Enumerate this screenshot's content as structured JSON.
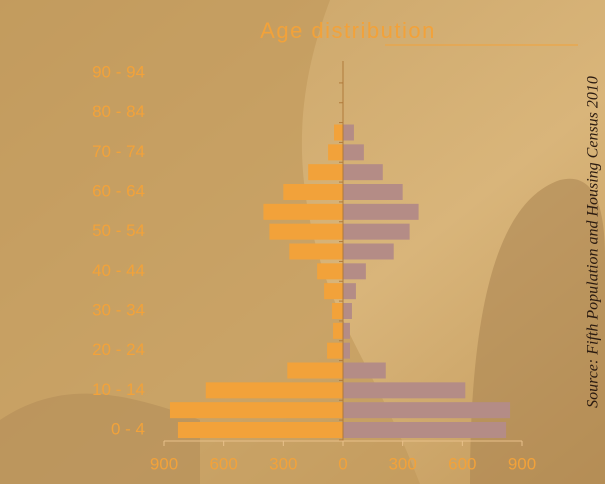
{
  "chart_data": {
    "type": "pyramid",
    "title": "Age distribution",
    "source": "Source: Fifth Population and Housing Census 2010",
    "categories": [
      "0 - 4",
      null,
      "10 - 14",
      null,
      "20 - 24",
      null,
      "30 - 34",
      null,
      "40 - 44",
      null,
      "50 - 54",
      null,
      "60 - 64",
      null,
      "70 - 74",
      null,
      "80 - 84",
      null,
      "90 - 94"
    ],
    "series": [
      {
        "color": "#f2a23a",
        "values": [
          -830,
          -870,
          -690,
          -280,
          -80,
          -50,
          -55,
          -95,
          -130,
          -270,
          -370,
          -400,
          -300,
          -175,
          -75,
          -45,
          0,
          0,
          0
        ]
      },
      {
        "color": "#b48c86",
        "values": [
          820,
          840,
          615,
          215,
          35,
          35,
          45,
          65,
          115,
          255,
          335,
          380,
          300,
          200,
          105,
          55,
          0,
          0,
          0
        ]
      }
    ],
    "xlim": [
      -900,
      900
    ],
    "xticks": [
      {
        "value": -900,
        "label": "900"
      },
      {
        "value": -600,
        "label": "600"
      },
      {
        "value": -300,
        "label": "300"
      },
      0,
      300,
      600,
      900
    ]
  }
}
